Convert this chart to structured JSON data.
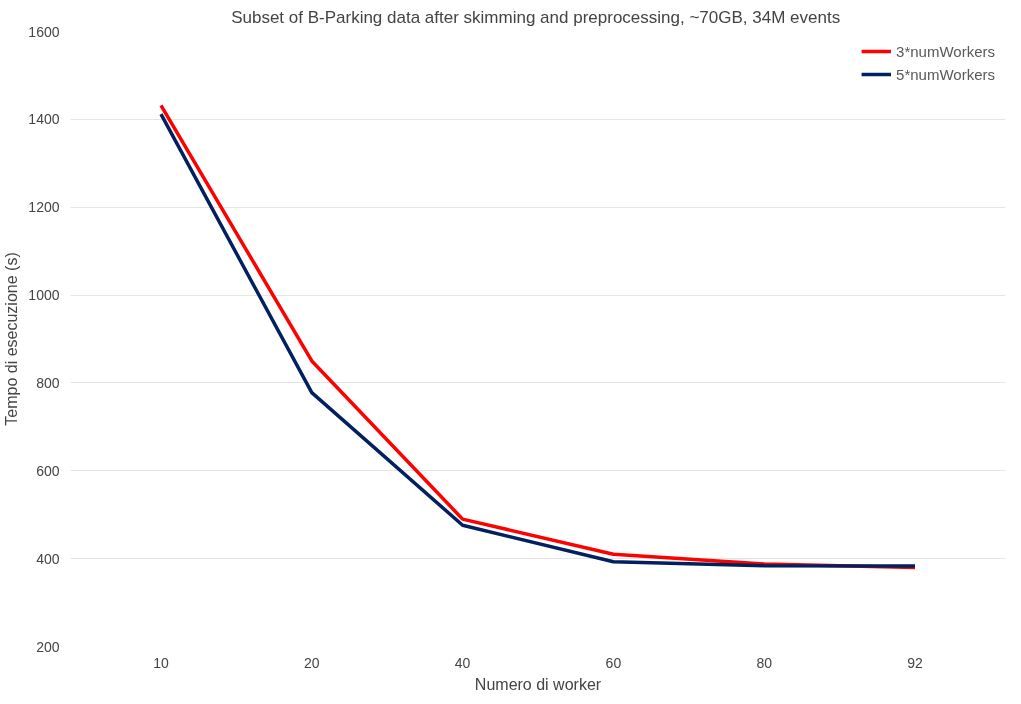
{
  "chart_data": {
    "type": "line",
    "title": "Subset of B-Parking data after skimming and preprocessing,  ~70GB, 34M events",
    "xlabel": "Numero di worker",
    "ylabel": "Tempo di esecuzione (s)",
    "categories": [
      "10",
      "20",
      "40",
      "60",
      "80",
      "92"
    ],
    "series": [
      {
        "name": "3*numWorkers",
        "color": "#ff0000",
        "values": [
          1432,
          850,
          490,
          410,
          388,
          380
        ]
      },
      {
        "name": "5*numWorkers",
        "color": "#002060",
        "values": [
          1412,
          778,
          476,
          393,
          384,
          383
        ]
      }
    ],
    "ylim": [
      200,
      1600
    ],
    "yticks": [
      200,
      400,
      600,
      800,
      1000,
      1200,
      1400,
      1600
    ],
    "grid": "y",
    "legend": "top right",
    "marker": "none",
    "line_style": "solid"
  }
}
